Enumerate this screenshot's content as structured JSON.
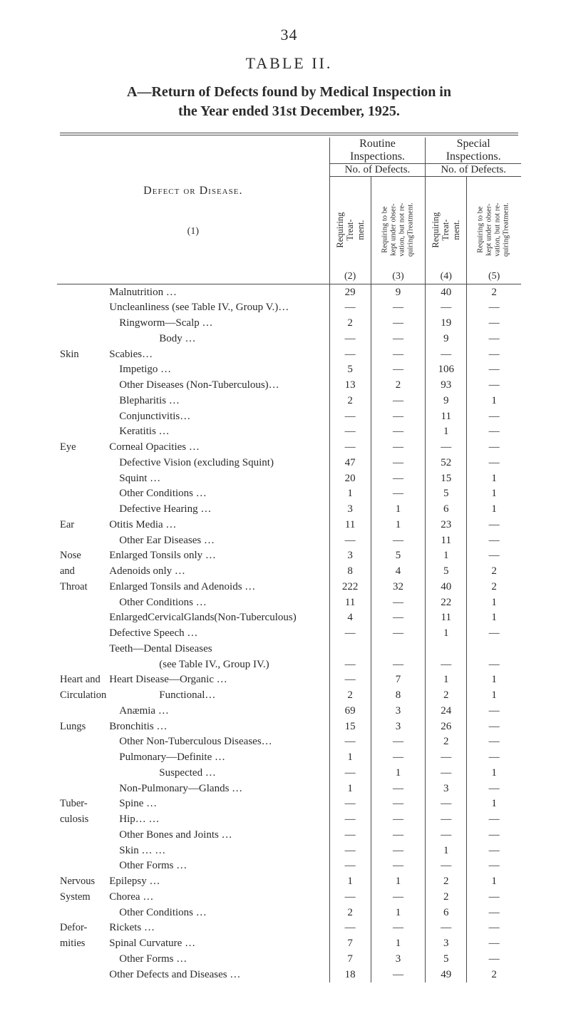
{
  "page_number": "34",
  "table_label": "TABLE II.",
  "title_line1": "A—Return of Defects found by Medical Inspection in",
  "title_line2": "the Year ended 31st December, 1925.",
  "header": {
    "routine": "Routine\nInspections.",
    "special": "Special\nInspections.",
    "defects": "No. of Defects.",
    "defect_or_disease": "Defect or Disease.",
    "col2": "Requiring Treat-\nment.",
    "col3": "Requiring to be\nkept under obser-\nvation, but not re-\nquiringTreatment.",
    "col4": "Requiring Treat-\nment.",
    "col5": "Requiring to be\nkept under obser-\nvation, but not re-\nquiringTreatment.",
    "n1": "(1)",
    "n2": "(2)",
    "n3": "(3)",
    "n4": "(4)",
    "n5": "(5)"
  },
  "rows": [
    {
      "group": "",
      "label": "Malnutrition …",
      "c2": "29",
      "c3": "9",
      "c4": "40",
      "c5": "2"
    },
    {
      "group": "",
      "label": "Uncleanliness (see Table IV., Group V.)…",
      "c2": "—",
      "c3": "—",
      "c4": "—",
      "c5": "—"
    },
    {
      "group": "",
      "label": "Ringworm—Scalp   …",
      "indent": 2,
      "brace_open": true,
      "c2": "2",
      "c3": "—",
      "c4": "19",
      "c5": "—"
    },
    {
      "group": "",
      "label": "Body   …",
      "indent": 3,
      "c2": "—",
      "c3": "—",
      "c4": "9",
      "c5": "—"
    },
    {
      "group": "Skin",
      "label": "Scabies…",
      "indent": 1,
      "c2": "—",
      "c3": "—",
      "c4": "—",
      "c5": "—"
    },
    {
      "group": "",
      "label": "Impetigo   …",
      "indent": 2,
      "c2": "5",
      "c3": "—",
      "c4": "106",
      "c5": "—"
    },
    {
      "group": "",
      "label": "Other Diseases (Non-Tuberculous)…",
      "indent": 2,
      "brace_close": true,
      "c2": "13",
      "c3": "2",
      "c4": "93",
      "c5": "—"
    },
    {
      "group": "",
      "label": "Blepharitis   …",
      "indent": 2,
      "brace_open": true,
      "c2": "2",
      "c3": "—",
      "c4": "9",
      "c5": "1"
    },
    {
      "group": "",
      "label": "Conjunctivitis…",
      "indent": 2,
      "c2": "—",
      "c3": "—",
      "c4": "11",
      "c5": "—"
    },
    {
      "group": "",
      "label": "Keratitis   …",
      "indent": 2,
      "c2": "—",
      "c3": "—",
      "c4": "1",
      "c5": "—"
    },
    {
      "group": "Eye",
      "label": "Corneal Opacities   …",
      "indent": 1,
      "c2": "—",
      "c3": "—",
      "c4": "—",
      "c5": "—"
    },
    {
      "group": "",
      "label": "Defective Vision (excluding Squint)",
      "indent": 2,
      "c2": "47",
      "c3": "—",
      "c4": "52",
      "c5": "—"
    },
    {
      "group": "",
      "label": "Squint …",
      "indent": 2,
      "c2": "20",
      "c3": "—",
      "c4": "15",
      "c5": "1"
    },
    {
      "group": "",
      "label": "Other Conditions   …",
      "indent": 2,
      "brace_close": true,
      "c2": "1",
      "c3": "—",
      "c4": "5",
      "c5": "1"
    },
    {
      "group": "",
      "label": "Defective Hearing   …",
      "indent": 2,
      "brace_open": true,
      "c2": "3",
      "c3": "1",
      "c4": "6",
      "c5": "1"
    },
    {
      "group": "Ear",
      "label": "Otitis Media …",
      "indent": 1,
      "c2": "11",
      "c3": "1",
      "c4": "23",
      "c5": "—"
    },
    {
      "group": "",
      "label": "Other Ear Diseases …",
      "indent": 2,
      "brace_close": true,
      "c2": "—",
      "c3": "—",
      "c4": "11",
      "c5": "—"
    },
    {
      "group": "Nose",
      "label": "Enlarged Tonsils only   …",
      "indent": 1,
      "brace_open": true,
      "c2": "3",
      "c3": "5",
      "c4": "1",
      "c5": "—"
    },
    {
      "group": "and",
      "label": "Adenoids only   …",
      "indent": 1,
      "c2": "8",
      "c3": "4",
      "c4": "5",
      "c5": "2"
    },
    {
      "group": "Throat",
      "label": "Enlarged Tonsils and Adenoids …",
      "indent": 1,
      "c2": "222",
      "c3": "32",
      "c4": "40",
      "c5": "2"
    },
    {
      "group": "",
      "label": "Other Conditions …",
      "indent": 2,
      "brace_close": true,
      "c2": "11",
      "c3": "—",
      "c4": "22",
      "c5": "1"
    },
    {
      "group": "",
      "label": "EnlargedCervicalGlands(Non-Tuberculous)",
      "c2": "4",
      "c3": "—",
      "c4": "11",
      "c5": "1"
    },
    {
      "group": "",
      "label": "Defective Speech   …",
      "c2": "—",
      "c3": "—",
      "c4": "1",
      "c5": "—"
    },
    {
      "group": "",
      "label": "Teeth—Dental Diseases",
      "c2": "",
      "c3": "",
      "c4": "",
      "c5": ""
    },
    {
      "group": "",
      "label": "(see Table IV., Group IV.)",
      "indent": 3,
      "c2": "—",
      "c3": "—",
      "c4": "—",
      "c5": "—"
    },
    {
      "group": "Heart and",
      "label": "Heart Disease—Organic   …",
      "indent": 1,
      "brace_open": true,
      "c2": "—",
      "c3": "7",
      "c4": "1",
      "c5": "1"
    },
    {
      "group": "Circulation",
      "label": "Functional…",
      "indent": 3,
      "c2": "2",
      "c3": "8",
      "c4": "2",
      "c5": "1"
    },
    {
      "group": "",
      "label": "Anæmia   …",
      "indent": 2,
      "brace_close": true,
      "c2": "69",
      "c3": "3",
      "c4": "24",
      "c5": "—"
    },
    {
      "group": "Lungs",
      "label": "Bronchitis …",
      "indent": 1,
      "brace_open": true,
      "c2": "15",
      "c3": "3",
      "c4": "26",
      "c5": "—"
    },
    {
      "group": "",
      "label": "Other Non-Tuberculous Diseases…",
      "indent": 2,
      "brace_close": true,
      "c2": "—",
      "c3": "—",
      "c4": "2",
      "c5": "—"
    },
    {
      "group": "",
      "label": "Pulmonary—Definite   …",
      "indent": 2,
      "brace_open": true,
      "c2": "1",
      "c3": "—",
      "c4": "—",
      "c5": "—"
    },
    {
      "group": "",
      "label": "Suspected …",
      "indent": 3,
      "c2": "—",
      "c3": "1",
      "c4": "—",
      "c5": "1"
    },
    {
      "group": "",
      "label": "Non-Pulmonary—Glands …",
      "indent": 2,
      "c2": "1",
      "c3": "—",
      "c4": "3",
      "c5": "—"
    },
    {
      "group": "Tuber-",
      "label": "Spine   …",
      "indent": 2,
      "c2": "—",
      "c3": "—",
      "c4": "—",
      "c5": "1"
    },
    {
      "group": "culosis",
      "label": "Hip…   …",
      "indent": 2,
      "c2": "—",
      "c3": "—",
      "c4": "—",
      "c5": "—"
    },
    {
      "group": "",
      "label": "Other Bones and Joints …",
      "indent": 2,
      "c2": "—",
      "c3": "—",
      "c4": "—",
      "c5": "—"
    },
    {
      "group": "",
      "label": "Skin …   …",
      "indent": 2,
      "c2": "—",
      "c3": "—",
      "c4": "1",
      "c5": "—"
    },
    {
      "group": "",
      "label": "Other Forms   …",
      "indent": 2,
      "brace_close": true,
      "c2": "—",
      "c3": "—",
      "c4": "—",
      "c5": "—"
    },
    {
      "group": "Nervous",
      "label": "Epilepsy …",
      "indent": 1,
      "brace_open": true,
      "c2": "1",
      "c3": "1",
      "c4": "2",
      "c5": "1"
    },
    {
      "group": "System",
      "label": "Chorea   …",
      "indent": 1,
      "c2": "—",
      "c3": "—",
      "c4": "2",
      "c5": "—"
    },
    {
      "group": "",
      "label": "Other Conditions   …",
      "indent": 2,
      "brace_close": true,
      "c2": "2",
      "c3": "1",
      "c4": "6",
      "c5": "—"
    },
    {
      "group": "Defor-",
      "label": "Rickets   …",
      "indent": 1,
      "brace_open": true,
      "c2": "—",
      "c3": "—",
      "c4": "—",
      "c5": "—"
    },
    {
      "group": "mities",
      "label": "Spinal Curvature …",
      "indent": 1,
      "c2": "7",
      "c3": "1",
      "c4": "3",
      "c5": "—"
    },
    {
      "group": "",
      "label": "Other Forms   …",
      "indent": 2,
      "brace_close": true,
      "c2": "7",
      "c3": "3",
      "c4": "5",
      "c5": "—"
    },
    {
      "group": "",
      "label": "Other Defects and Diseases   …",
      "c2": "18",
      "c3": "—",
      "c4": "49",
      "c5": "2"
    }
  ],
  "style": {
    "text_color": "#2a2a2a",
    "rule_color": "#4a4a4a",
    "background": "#ffffff",
    "body_fontsize": 15,
    "title_fontsize": 20,
    "label_fontsize": 22
  }
}
